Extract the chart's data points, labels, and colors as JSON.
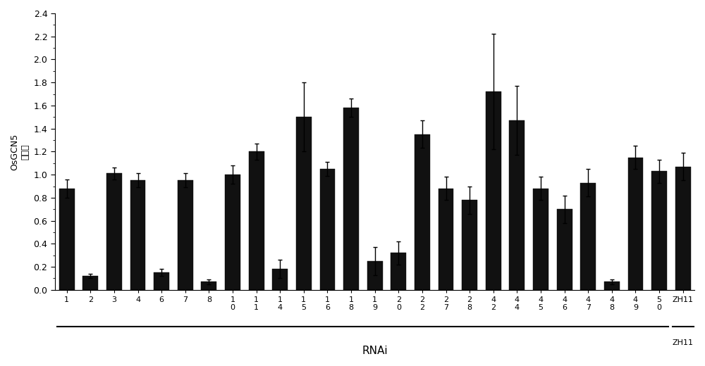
{
  "categories": [
    "1",
    "2",
    "3",
    "4",
    "6",
    "7",
    "8",
    "10",
    "11",
    "14",
    "15",
    "16",
    "18",
    "19",
    "20",
    "22",
    "27",
    "28",
    "42",
    "44",
    "45",
    "46",
    "47",
    "48",
    "49",
    "50",
    "ZH11"
  ],
  "values": [
    0.88,
    0.12,
    1.01,
    0.95,
    0.15,
    0.95,
    0.07,
    1.0,
    1.2,
    0.18,
    1.5,
    1.05,
    1.58,
    0.25,
    0.32,
    1.35,
    0.88,
    0.78,
    1.72,
    1.47,
    0.88,
    0.7,
    0.93,
    0.07,
    1.15,
    1.03,
    1.07
  ],
  "errors": [
    0.08,
    0.02,
    0.05,
    0.06,
    0.03,
    0.06,
    0.02,
    0.08,
    0.07,
    0.08,
    0.3,
    0.06,
    0.08,
    0.12,
    0.1,
    0.12,
    0.1,
    0.12,
    0.5,
    0.3,
    0.1,
    0.12,
    0.12,
    0.02,
    0.1,
    0.1,
    0.12
  ],
  "bar_color": "#111111",
  "ylabel_line1": "OsGCN5",
  "ylabel_line2": "表达量",
  "xlabel": "RNAi",
  "ylim": [
    0,
    2.4
  ],
  "yticks": [
    0,
    0.2,
    0.4,
    0.6,
    0.8,
    1.0,
    1.2,
    1.4,
    1.6,
    1.8,
    2.0,
    2.2,
    2.4
  ],
  "background_color": "#ffffff"
}
